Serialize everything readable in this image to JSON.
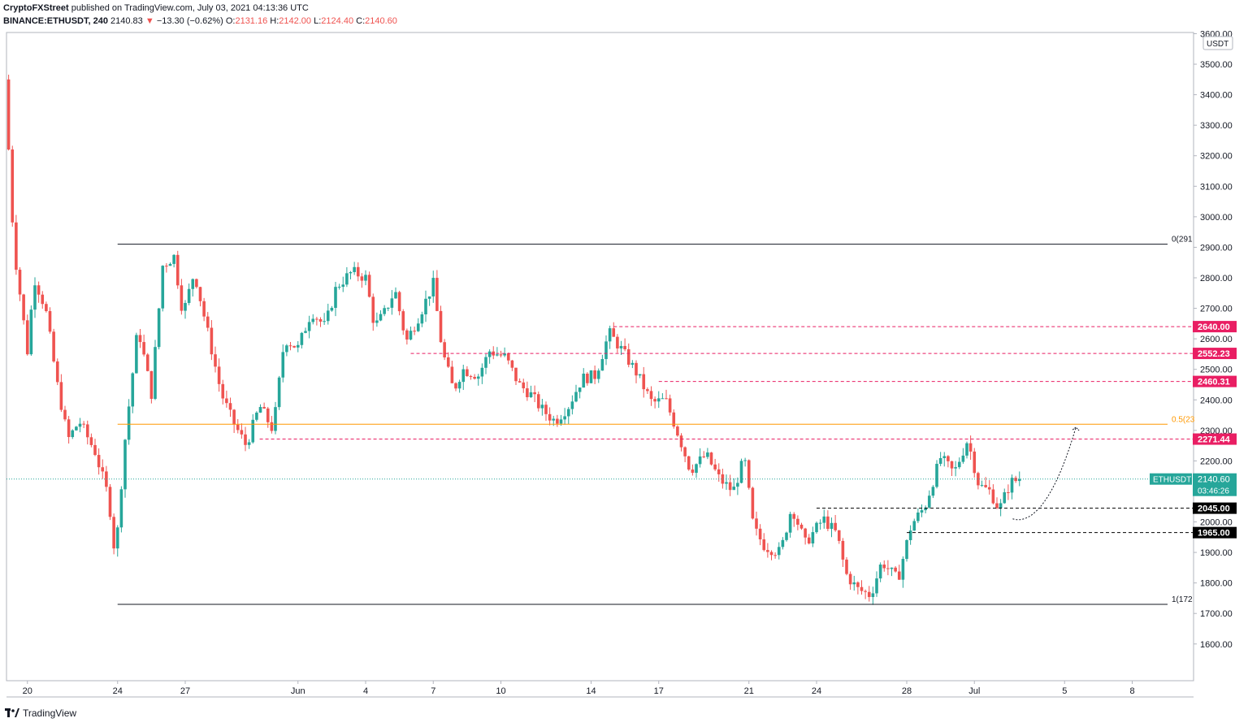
{
  "header": {
    "publisher": "CryptoFXStreet",
    "published_text": "published on TradingView.com, July 03, 2021 04:13:36 UTC",
    "symbol": "BINANCE:ETHUSDT, 240",
    "last": "2140.83",
    "arrow": "▼",
    "change": "−13.30 (−0.62%)",
    "o_label": "O:",
    "o": "2131.16",
    "h_label": "H:",
    "h": "2142.00",
    "l_label": "L:",
    "l": "2124.40",
    "c_label": "C:",
    "c": "2140.60"
  },
  "footer": {
    "brand": "TradingView"
  },
  "colors": {
    "up": "#26a69a",
    "down": "#ef5350",
    "level": "#e91e63",
    "fib_half": "#ff9800",
    "support": "#000000",
    "grid": "#e0e3eb"
  },
  "chart_data": {
    "type": "candlestick",
    "currency": "USDT",
    "ylim": [
      1530,
      3700
    ],
    "y_ticks": [
      1600,
      1700,
      1800,
      1900,
      2000,
      2100,
      2200,
      2300,
      2400,
      2500,
      2600,
      2700,
      2800,
      2900,
      3000,
      3100,
      3200,
      3300,
      3400,
      3500,
      3600
    ],
    "y_tick_labels": [
      "1600.00",
      "1700.00",
      "1800.00",
      "1900.00",
      "2000.00",
      "2100.00",
      "2200.00",
      "2300.00",
      "2400.00",
      "2500.00",
      "2600.00",
      "2700.00",
      "2800.00",
      "2900.00",
      "3000.00",
      "3100.00",
      "3200.00",
      "3300.00",
      "3400.00",
      "3500.00",
      "3600.00"
    ],
    "x_ticks": [
      {
        "label": "20",
        "day": 20
      },
      {
        "label": "24",
        "day": 24
      },
      {
        "label": "27",
        "day": 27
      },
      {
        "label": "Jun",
        "day": 32
      },
      {
        "label": "4",
        "day": 35
      },
      {
        "label": "7",
        "day": 38
      },
      {
        "label": "10",
        "day": 41
      },
      {
        "label": "14",
        "day": 45
      },
      {
        "label": "17",
        "day": 48
      },
      {
        "label": "21",
        "day": 52
      },
      {
        "label": "24",
        "day": 55
      },
      {
        "label": "28",
        "day": 59
      },
      {
        "label": "Jul",
        "day": 62
      },
      {
        "label": "5",
        "day": 66
      },
      {
        "label": "8",
        "day": 69
      }
    ],
    "x_range_days": [
      19.0,
      72.0
    ],
    "anchors": [
      [
        19.0,
        3450
      ],
      [
        19.4,
        2900
      ],
      [
        20.0,
        2560
      ],
      [
        20.3,
        2800
      ],
      [
        20.8,
        2700
      ],
      [
        21.3,
        2460
      ],
      [
        21.8,
        2270
      ],
      [
        22.3,
        2330
      ],
      [
        23.0,
        2230
      ],
      [
        23.6,
        2080
      ],
      [
        23.9,
        1880
      ],
      [
        24.3,
        2250
      ],
      [
        24.9,
        2640
      ],
      [
        25.5,
        2420
      ],
      [
        26.0,
        2840
      ],
      [
        26.5,
        2870
      ],
      [
        26.9,
        2680
      ],
      [
        27.4,
        2820
      ],
      [
        28.0,
        2620
      ],
      [
        28.6,
        2420
      ],
      [
        29.1,
        2330
      ],
      [
        29.7,
        2250
      ],
      [
        30.3,
        2380
      ],
      [
        30.9,
        2300
      ],
      [
        31.4,
        2600
      ],
      [
        32.0,
        2570
      ],
      [
        32.6,
        2690
      ],
      [
        33.2,
        2640
      ],
      [
        33.7,
        2770
      ],
      [
        34.4,
        2820
      ],
      [
        35.0,
        2800
      ],
      [
        35.4,
        2640
      ],
      [
        35.8,
        2680
      ],
      [
        36.3,
        2760
      ],
      [
        36.8,
        2590
      ],
      [
        37.4,
        2680
      ],
      [
        38.0,
        2780
      ],
      [
        38.4,
        2560
      ],
      [
        38.9,
        2430
      ],
      [
        39.3,
        2500
      ],
      [
        40.0,
        2480
      ],
      [
        40.5,
        2560
      ],
      [
        41.2,
        2540
      ],
      [
        41.8,
        2450
      ],
      [
        42.3,
        2420
      ],
      [
        42.8,
        2370
      ],
      [
        43.4,
        2330
      ],
      [
        44.0,
        2380
      ],
      [
        44.6,
        2470
      ],
      [
        45.2,
        2480
      ],
      [
        45.8,
        2620
      ],
      [
        46.3,
        2570
      ],
      [
        47.0,
        2490
      ],
      [
        47.7,
        2390
      ],
      [
        48.3,
        2400
      ],
      [
        48.9,
        2280
      ],
      [
        49.4,
        2170
      ],
      [
        50.1,
        2220
      ],
      [
        50.7,
        2140
      ],
      [
        51.3,
        2100
      ],
      [
        51.8,
        2210
      ],
      [
        52.2,
        1980
      ],
      [
        52.7,
        1920
      ],
      [
        53.4,
        1900
      ],
      [
        53.9,
        2050
      ],
      [
        54.5,
        1930
      ],
      [
        55.3,
        2010
      ],
      [
        55.9,
        1960
      ],
      [
        56.3,
        1830
      ],
      [
        56.8,
        1780
      ],
      [
        57.4,
        1760
      ],
      [
        57.9,
        1870
      ],
      [
        58.6,
        1810
      ],
      [
        59.2,
        1990
      ],
      [
        59.8,
        2050
      ],
      [
        60.5,
        2210
      ],
      [
        61.1,
        2160
      ],
      [
        61.7,
        2270
      ],
      [
        62.2,
        2120
      ],
      [
        62.7,
        2100
      ],
      [
        63.1,
        2040
      ],
      [
        63.6,
        2130
      ],
      [
        64.0,
        2140
      ]
    ],
    "last_price": 2140.6,
    "last_label": "2140.60",
    "symbol_tag": "ETHUSDT",
    "countdown": "03:46:26",
    "fib_levels": [
      {
        "label": "0(291",
        "value": 2910,
        "color": "#131722",
        "from_day": 24.0
      },
      {
        "label": "0.5(23",
        "value": 2320,
        "color": "#ff9800",
        "from_day": 24.0
      },
      {
        "label": "1(172",
        "value": 1730,
        "color": "#131722",
        "from_day": 24.0
      }
    ],
    "resistance": [
      {
        "value": 2640.0,
        "label": "2640.00",
        "from_day": 46.0
      },
      {
        "value": 2552.23,
        "label": "2552.23",
        "from_day": 37.0
      },
      {
        "value": 2460.31,
        "label": "2460.31",
        "from_day": 48.0
      },
      {
        "value": 2271.44,
        "label": "2271.44",
        "from_day": 30.3
      }
    ],
    "support": [
      {
        "value": 2045.0,
        "label": "2045.00",
        "from_day": 55.0
      },
      {
        "value": 1965.0,
        "label": "1965.00",
        "from_day": 59.0
      }
    ],
    "projection": [
      [
        63.7,
        2010
      ],
      [
        64.6,
        1990
      ],
      [
        65.6,
        2080
      ],
      [
        66.5,
        2310
      ]
    ]
  }
}
